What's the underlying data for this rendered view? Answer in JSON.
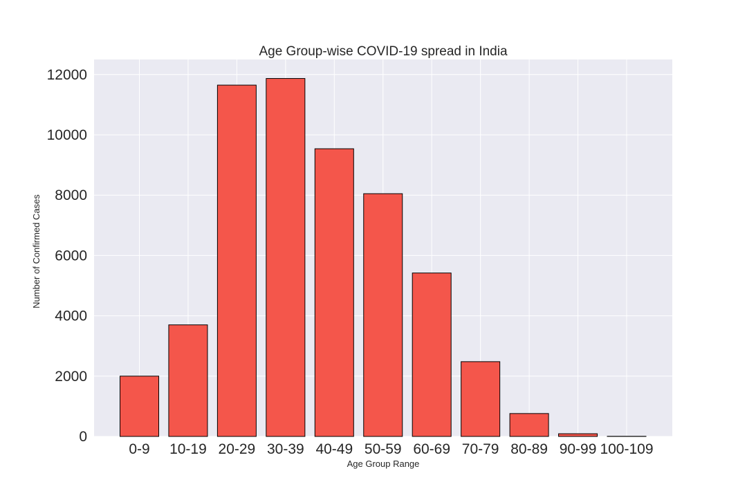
{
  "chart_data": {
    "type": "bar",
    "title": "Age Group-wise COVID-19 spread in India",
    "xlabel": "Age Group Range",
    "ylabel": "Number of Confirmed Cases",
    "categories": [
      "0-9",
      "10-19",
      "20-29",
      "30-39",
      "40-49",
      "50-59",
      "60-69",
      "70-79",
      "80-89",
      "90-99",
      "100-109"
    ],
    "values": [
      2000,
      3700,
      11650,
      11870,
      9540,
      8050,
      5420,
      2480,
      760,
      90,
      5
    ],
    "ylim": [
      0,
      12500
    ],
    "yticks": [
      0,
      2000,
      4000,
      6000,
      8000,
      10000,
      12000
    ],
    "grid": true,
    "bar_color": "#f4564b",
    "bar_edge_color": "#000000",
    "background_color": "#eaeaf2",
    "grid_color": "#ffffff"
  }
}
